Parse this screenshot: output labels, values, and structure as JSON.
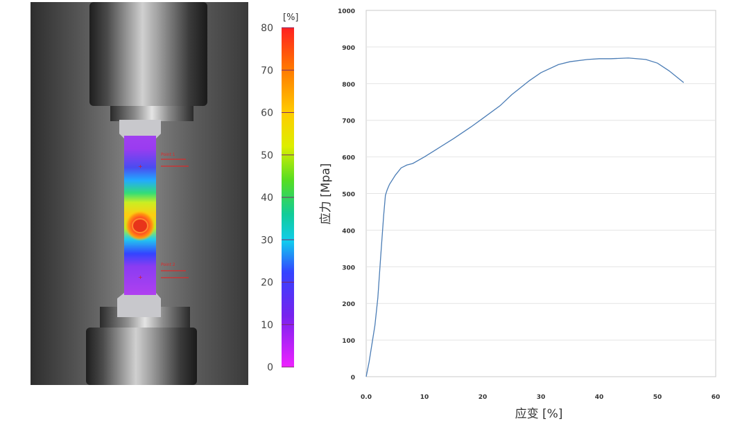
{
  "photo": {
    "point1_label": "Point 1",
    "point2_label": "Point 2"
  },
  "colorbar": {
    "unit": "[%]",
    "ticks": [
      "80",
      "70",
      "60",
      "50",
      "40",
      "30",
      "20",
      "10",
      "0"
    ],
    "range": [
      0,
      80
    ],
    "colors": [
      "#ff2020",
      "#ff9900",
      "#ffee00",
      "#66dd11",
      "#11cc88",
      "#11ccee",
      "#3344ff",
      "#7722ee",
      "#ee22ff"
    ]
  },
  "chart_data": {
    "type": "line",
    "xlabel": "应变 [%]",
    "ylabel": "应力 [Mpa]",
    "xlim": [
      0,
      60
    ],
    "ylim": [
      0,
      1000
    ],
    "x_ticks": [
      "0.0",
      "10",
      "20",
      "30",
      "40",
      "50",
      "60"
    ],
    "y_ticks": [
      "0",
      "100",
      "200",
      "300",
      "400",
      "500",
      "600",
      "700",
      "800",
      "900",
      "1000"
    ],
    "grid": "horizontal",
    "line_color": "#4a7cb5",
    "series": [
      {
        "x": [
          0,
          0.5,
          1.0,
          1.5,
          2.0,
          2.5,
          3.0,
          3.3,
          3.6,
          4.0,
          5.0,
          6.0,
          7.0,
          8.0,
          10,
          12,
          15,
          18,
          20,
          23,
          25,
          28,
          30,
          33,
          35,
          38,
          40,
          42,
          45,
          48,
          50,
          52,
          54.5
        ],
        "y": [
          0,
          40,
          90,
          140,
          215,
          330,
          440,
          495,
          510,
          525,
          550,
          570,
          578,
          582,
          600,
          620,
          650,
          682,
          705,
          740,
          770,
          808,
          830,
          852,
          860,
          866,
          868,
          868,
          870,
          866,
          856,
          835,
          803
        ]
      }
    ]
  }
}
